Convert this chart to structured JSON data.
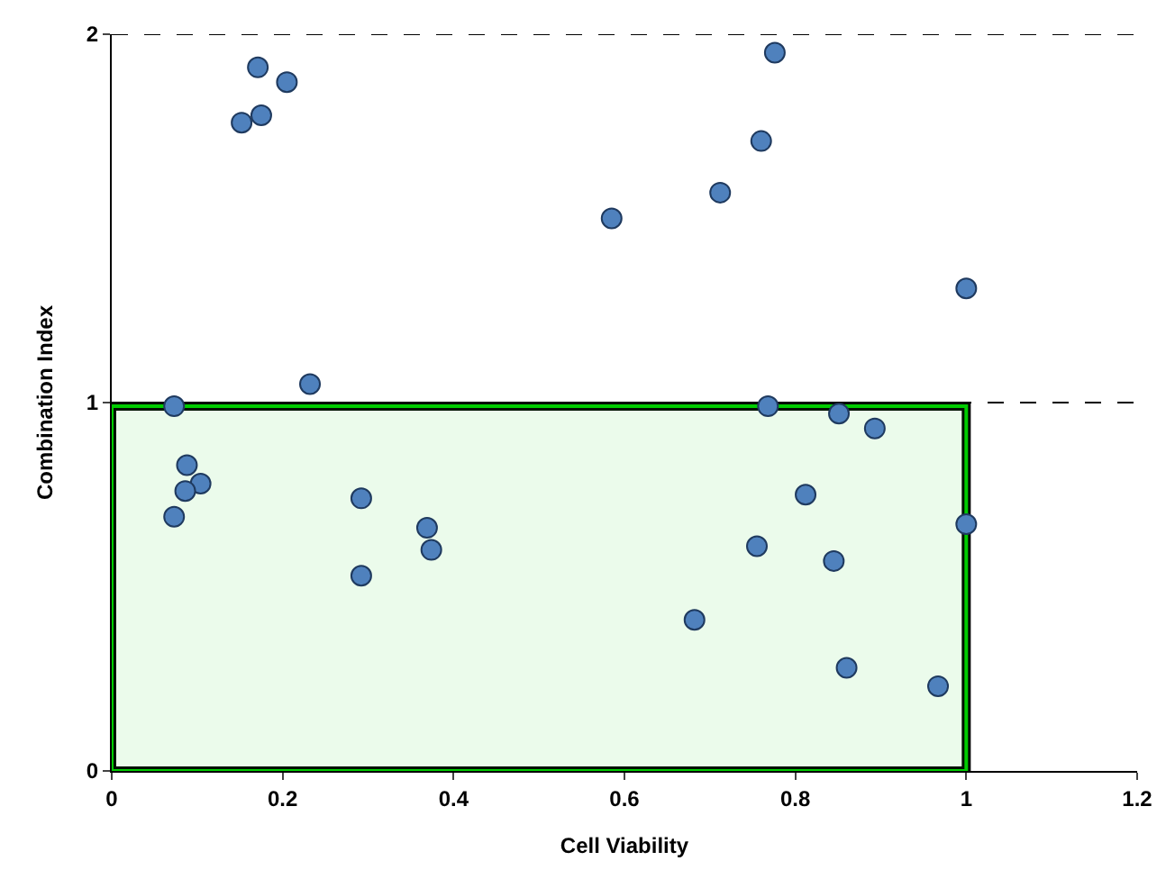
{
  "chart_data": {
    "type": "scatter",
    "xlabel": "Cell Viability",
    "ylabel": "Combination Index",
    "x": [
      0.171,
      0.205,
      0.175,
      0.152,
      0.232,
      0.073,
      0.088,
      0.104,
      0.086,
      0.073,
      0.292,
      0.292,
      0.369,
      0.374,
      0.776,
      0.76,
      0.712,
      0.585,
      1.0,
      0.768,
      0.851,
      0.893,
      0.812,
      1.0,
      0.755,
      0.845,
      0.682,
      0.86,
      0.967
    ],
    "values": [
      1.91,
      1.87,
      1.78,
      1.76,
      1.05,
      0.99,
      0.83,
      0.78,
      0.76,
      0.69,
      0.74,
      0.53,
      0.66,
      0.6,
      1.95,
      1.71,
      1.57,
      1.5,
      1.31,
      0.99,
      0.97,
      0.93,
      0.75,
      0.67,
      0.61,
      0.57,
      0.41,
      0.28,
      0.23
    ],
    "color": "#4f81bd",
    "marker": "circle",
    "xlim": [
      0,
      1.2
    ],
    "xticks": [
      0,
      0.2,
      0.4,
      0.6,
      0.8,
      1,
      1.2
    ],
    "ylim": [
      0,
      2
    ],
    "yticks": [
      0,
      1,
      2
    ],
    "grid": "y",
    "bands": [
      {
        "axis": "y",
        "from": 0,
        "to": 0.99,
        "color": "#00cc00"
      }
    ]
  }
}
